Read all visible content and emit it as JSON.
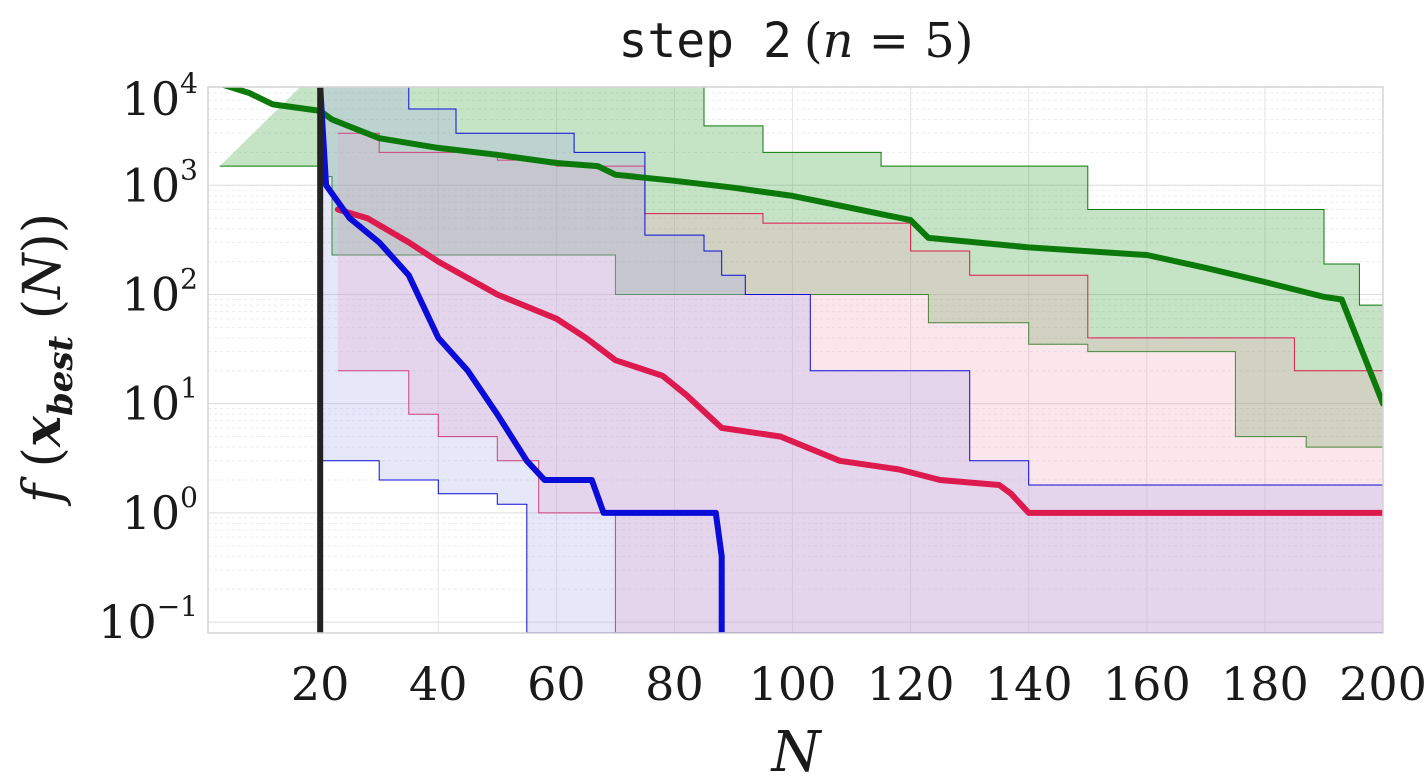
{
  "chart_data": {
    "type": "line",
    "title_prefix": "step 2",
    "title_paren_var": "n",
    "title_paren_value": "5",
    "xlabel": "N",
    "ylabel_func": "f",
    "ylabel_var": "x",
    "ylabel_sub": "best",
    "ylabel_arg": "N",
    "xlim": [
      1,
      200
    ],
    "ylim_log10": [
      -1.1,
      3.9
    ],
    "y_scale": "log",
    "grid": true,
    "x_ticks": [
      20,
      40,
      60,
      80,
      100,
      120,
      140,
      160,
      180,
      200
    ],
    "x_tick_labels": [
      "20",
      "40",
      "60",
      "80",
      "100",
      "120",
      "140",
      "160",
      "180",
      "200"
    ],
    "y_ticks": [
      {
        "base": "10",
        "exp": "4",
        "value": 10000
      },
      {
        "base": "10",
        "exp": "3",
        "value": 1000
      },
      {
        "base": "10",
        "exp": "2",
        "value": 100
      },
      {
        "base": "10",
        "exp": "1",
        "value": 10
      },
      {
        "base": "10",
        "exp": "0",
        "value": 1
      },
      {
        "base": "10",
        "exp": "−1",
        "value": 0.1
      }
    ],
    "vertical_marker_x": 20,
    "series": [
      {
        "color": "#0b7a0b",
        "fill": "#2e9a2e",
        "median": [
          [
            3,
            8500
          ],
          [
            8,
            7000
          ],
          [
            12,
            5500
          ],
          [
            20,
            4800
          ],
          [
            22,
            4000
          ],
          [
            30,
            2700
          ],
          [
            40,
            2200
          ],
          [
            50,
            1900
          ],
          [
            60,
            1600
          ],
          [
            67,
            1500
          ],
          [
            70,
            1250
          ],
          [
            80,
            1100
          ],
          [
            90,
            950
          ],
          [
            100,
            800
          ],
          [
            110,
            620
          ],
          [
            120,
            480
          ],
          [
            123,
            330
          ],
          [
            140,
            270
          ],
          [
            160,
            230
          ],
          [
            170,
            175
          ],
          [
            180,
            130
          ],
          [
            190,
            95
          ],
          [
            193,
            90
          ],
          [
            196,
            35
          ],
          [
            200,
            10
          ]
        ],
        "upper": [
          [
            20,
            12000
          ],
          [
            23,
            10000
          ],
          [
            55,
            9000
          ],
          [
            77,
            8000
          ],
          [
            85,
            3500
          ],
          [
            95,
            2000
          ],
          [
            115,
            1500
          ],
          [
            150,
            600
          ],
          [
            190,
            190
          ],
          [
            196,
            80
          ],
          [
            200,
            70
          ]
        ],
        "lower": [
          [
            3,
            1500
          ],
          [
            20,
            1200
          ],
          [
            22,
            230
          ],
          [
            60,
            230
          ],
          [
            70,
            100
          ],
          [
            123,
            55
          ],
          [
            140,
            35
          ],
          [
            150,
            30
          ],
          [
            175,
            5
          ],
          [
            187,
            4
          ],
          [
            200,
            1.2
          ]
        ]
      },
      {
        "color": "#dd1a4d",
        "fill": "#f2a7b9",
        "median": [
          [
            23,
            600
          ],
          [
            28,
            500
          ],
          [
            35,
            300
          ],
          [
            40,
            200
          ],
          [
            50,
            100
          ],
          [
            60,
            60
          ],
          [
            65,
            40
          ],
          [
            70,
            25
          ],
          [
            78,
            18
          ],
          [
            82,
            12
          ],
          [
            88,
            6
          ],
          [
            98,
            5
          ],
          [
            108,
            3
          ],
          [
            118,
            2.5
          ],
          [
            125,
            2
          ],
          [
            135,
            1.8
          ],
          [
            137,
            1.5
          ],
          [
            140,
            1
          ],
          [
            200,
            1
          ]
        ],
        "upper": [
          [
            23,
            3000
          ],
          [
            30,
            2000
          ],
          [
            50,
            1700
          ],
          [
            60,
            1500
          ],
          [
            75,
            550
          ],
          [
            95,
            450
          ],
          [
            120,
            250
          ],
          [
            130,
            150
          ],
          [
            150,
            40
          ],
          [
            185,
            20
          ],
          [
            200,
            20
          ]
        ],
        "lower": [
          [
            23,
            20
          ],
          [
            35,
            8
          ],
          [
            40,
            5
          ],
          [
            50,
            3
          ],
          [
            57,
            1
          ],
          [
            70,
            0.08
          ],
          [
            200,
            0.08
          ]
        ]
      },
      {
        "color": "#0c0cd9",
        "fill": "#a8a8ee",
        "median": [
          [
            20,
            8000
          ],
          [
            21,
            1000
          ],
          [
            25,
            500
          ],
          [
            30,
            300
          ],
          [
            35,
            150
          ],
          [
            40,
            40
          ],
          [
            45,
            20
          ],
          [
            50,
            8
          ],
          [
            55,
            3
          ],
          [
            58,
            2
          ],
          [
            66,
            2
          ],
          [
            68,
            1
          ],
          [
            87,
            1
          ],
          [
            88,
            0.4
          ],
          [
            88,
            0.08
          ]
        ],
        "upper": [
          [
            20,
            9000
          ],
          [
            35,
            5000
          ],
          [
            43,
            3000
          ],
          [
            63,
            2000
          ],
          [
            75,
            350
          ],
          [
            85,
            250
          ],
          [
            88,
            150
          ],
          [
            92,
            100
          ],
          [
            103,
            20
          ],
          [
            130,
            3
          ],
          [
            140,
            1.8
          ],
          [
            200,
            1.8
          ]
        ],
        "lower": [
          [
            20,
            3
          ],
          [
            30,
            2
          ],
          [
            40,
            1.5
          ],
          [
            50,
            1.2
          ],
          [
            55,
            0.08
          ],
          [
            200,
            0.08
          ]
        ]
      }
    ]
  }
}
